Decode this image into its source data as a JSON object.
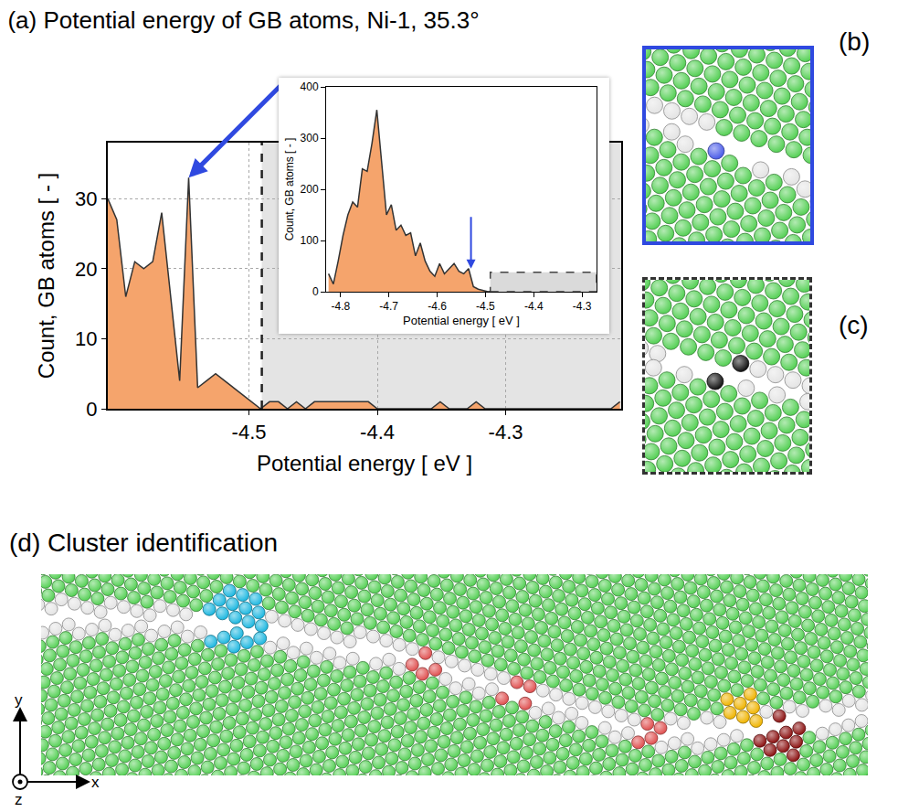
{
  "chart_data": [
    {
      "type": "area",
      "title": "(a) Potential energy of GB atoms, Ni-1, 35.3°",
      "x_label": "Potential energy [ eV ]",
      "y_label": "Count, GB atoms [ - ]",
      "x": [
        -4.61,
        -4.603,
        -4.596,
        -4.589,
        -4.582,
        -4.575,
        -4.568,
        -4.561,
        -4.554,
        -4.547,
        -4.54,
        -4.533,
        -4.526,
        -4.519,
        -4.512,
        -4.505,
        -4.498,
        -4.491,
        -4.484,
        -4.477,
        -4.47,
        -4.463,
        -4.456,
        -4.449,
        -4.442,
        -4.435,
        -4.428,
        -4.421,
        -4.414,
        -4.407,
        -4.4,
        -4.393,
        -4.386,
        -4.379,
        -4.372,
        -4.365,
        -4.358,
        -4.351,
        -4.344,
        -4.337,
        -4.33,
        -4.323,
        -4.316,
        -4.309,
        -4.302,
        -4.295,
        -4.288,
        -4.281,
        -4.274,
        -4.267,
        -4.26,
        -4.253,
        -4.246,
        -4.239,
        -4.232,
        -4.225,
        -4.218,
        -4.211
      ],
      "values": [
        30,
        27,
        16,
        21,
        20,
        21,
        28,
        16,
        4,
        33,
        3,
        4,
        5,
        4,
        3,
        2,
        1,
        0,
        1,
        1,
        0,
        1,
        0,
        1,
        1,
        1,
        1,
        1,
        1,
        1,
        0,
        0,
        0,
        0,
        0,
        0,
        0,
        1,
        0,
        0,
        0,
        1,
        0,
        0,
        0,
        0,
        0,
        0,
        0,
        0,
        0,
        0,
        0,
        0,
        0,
        0,
        0,
        1
      ],
      "color": "#f5a46c",
      "xlim": [
        -4.61,
        -4.21
      ],
      "xticks": [
        -4.5,
        -4.4,
        -4.3
      ],
      "ylim": [
        0,
        38
      ],
      "yticks": [
        0,
        10,
        20,
        30
      ],
      "grid": true,
      "threshold": -4.49
    },
    {
      "type": "area",
      "x_label": "Potential energy [ eV ]",
      "y_label": "Count, GB atoms [ - ]",
      "x": [
        -4.825,
        -4.815,
        -4.805,
        -4.795,
        -4.785,
        -4.775,
        -4.765,
        -4.755,
        -4.745,
        -4.735,
        -4.725,
        -4.715,
        -4.705,
        -4.695,
        -4.685,
        -4.675,
        -4.665,
        -4.655,
        -4.645,
        -4.635,
        -4.625,
        -4.615,
        -4.605,
        -4.595,
        -4.585,
        -4.575,
        -4.565,
        -4.555,
        -4.545,
        -4.535,
        -4.525,
        -4.515,
        -4.505,
        -4.495,
        -4.485,
        -4.475,
        -4.465,
        -4.455,
        -4.445,
        -4.435,
        -4.425,
        -4.415,
        -4.405,
        -4.395,
        -4.385,
        -4.375,
        -4.365,
        -4.355,
        -4.345,
        -4.335,
        -4.325,
        -4.315,
        -4.305,
        -4.295,
        -4.285,
        -4.275
      ],
      "values": [
        35,
        15,
        60,
        110,
        150,
        175,
        165,
        240,
        235,
        290,
        355,
        255,
        150,
        170,
        120,
        130,
        110,
        115,
        70,
        95,
        60,
        40,
        30,
        55,
        35,
        45,
        55,
        40,
        35,
        45,
        10,
        5,
        2,
        0,
        1,
        1,
        1,
        1,
        1,
        1,
        1,
        1,
        0,
        0,
        0,
        0,
        0,
        0,
        0,
        0,
        1,
        0,
        0,
        0,
        0,
        1
      ],
      "color": "#f5a46c",
      "xlim": [
        -4.83,
        -4.27
      ],
      "xticks": [
        -4.8,
        -4.7,
        -4.6,
        -4.5,
        -4.4,
        -4.3
      ],
      "ylim": [
        0,
        400
      ],
      "yticks": [
        0,
        100,
        200,
        300,
        400
      ],
      "grid": false,
      "threshold": -4.49,
      "arrow_at": -4.53
    }
  ],
  "panels": {
    "b": {
      "label": "(b)"
    },
    "c": {
      "label": "(c)"
    },
    "d": {
      "title": "(d) Cluster identification",
      "axes": [
        "x",
        "y",
        "z"
      ]
    }
  }
}
